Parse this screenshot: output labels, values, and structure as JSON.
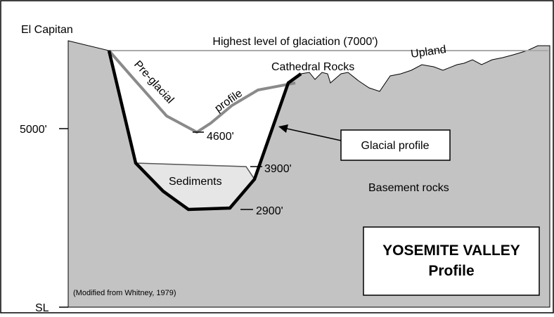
{
  "landmarks": {
    "left_peak": "El Capitan",
    "upland": "Upland",
    "right_peak": "Cathedral Rocks"
  },
  "glaciation_level": "Highest level of glaciation (7000')",
  "preglacial_profile": {
    "label_part1": "Pre-glacial",
    "label_part2": "profile"
  },
  "elevations": {
    "axis_5000": "5000'",
    "axis_sl": "SL",
    "preglacial_floor": "4600'",
    "sediment_top": "3900'",
    "bedrock_floor": "2900'"
  },
  "areas": {
    "sediments": "Sediments",
    "basement": "Basement rocks"
  },
  "callout": "Glacial profile",
  "title_box": {
    "line1": "YOSEMITE VALLEY",
    "line2": "Profile"
  },
  "source": "(Modified from Whitney, 1979)"
}
